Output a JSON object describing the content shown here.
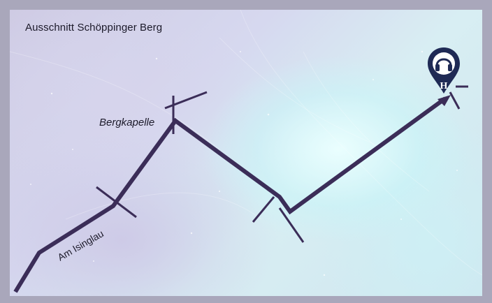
{
  "map": {
    "title": "Ausschnitt Schöppinger Berg",
    "poi_label": "Bergkapelle",
    "street_label": "Am Isinglau",
    "marker": {
      "icon": "headphones-icon",
      "letter": "H"
    },
    "colors": {
      "route": "#3b2d58",
      "marker": "#1f2a55",
      "frame": "#a9a7bb"
    }
  }
}
